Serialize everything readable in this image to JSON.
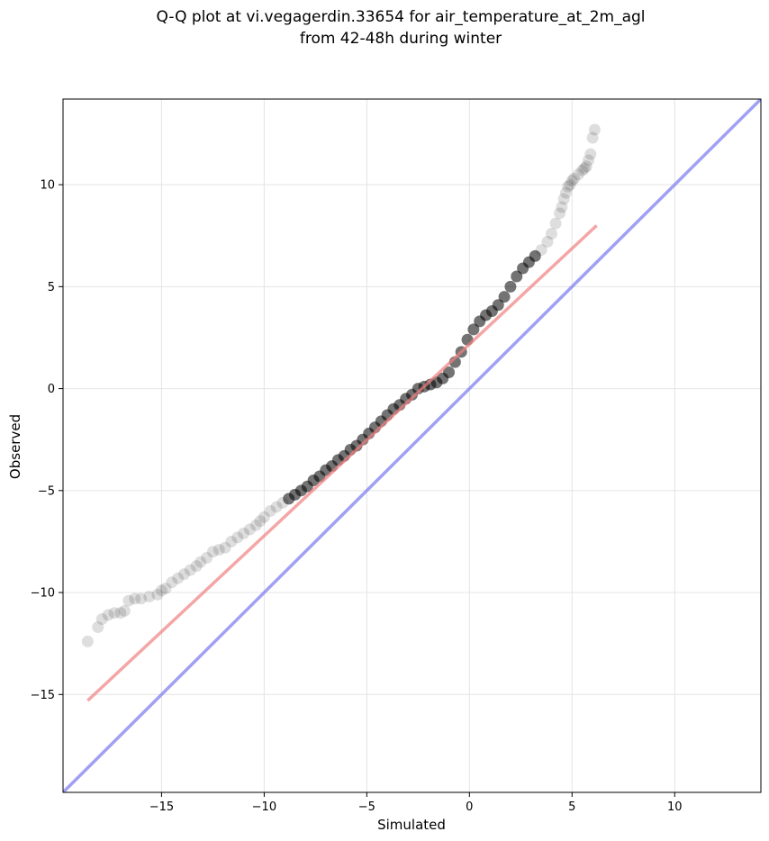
{
  "chart_data": {
    "type": "scatter",
    "title": [
      "Q-Q plot at vi.vegagerdin.33654 for air_temperature_at_2m_agl",
      "from 42-48h during winter"
    ],
    "xlabel": "Simulated",
    "ylabel": "Observed",
    "xlim": [
      -19.8,
      14.2
    ],
    "ylim": [
      -19.8,
      14.2
    ],
    "xticks": [
      -15,
      -10,
      -5,
      0,
      5,
      10
    ],
    "yticks": [
      -15,
      -10,
      -5,
      0,
      5,
      10
    ],
    "xtick_labels": [
      "−15",
      "−10",
      "−5",
      "0",
      "5",
      "10"
    ],
    "ytick_labels": [
      "−15",
      "−10",
      "−5",
      "0",
      "5",
      "10"
    ],
    "grid": true,
    "series": [
      {
        "kind": "points",
        "color": "#000000",
        "x": [
          -18.6,
          -18.1,
          -17.9,
          -17.6,
          -17.3,
          -17.0,
          -16.8,
          -16.6,
          -16.3,
          -16.0,
          -15.6,
          -15.2,
          -15.0,
          -14.8,
          -14.5,
          -14.2,
          -13.9,
          -13.6,
          -13.3,
          -13.1,
          -12.8,
          -12.5,
          -12.2,
          -11.9,
          -11.6,
          -11.3,
          -11.0,
          -10.7,
          -10.4,
          -10.2,
          -10.0,
          -9.7,
          -9.4,
          -9.1,
          -8.8,
          -8.5,
          -8.2,
          -7.9,
          -7.6,
          -7.3,
          -7.0,
          -6.7,
          -6.4,
          -6.1,
          -5.8,
          -5.5,
          -5.2,
          -4.9,
          -4.6,
          -4.3,
          -4.0,
          -3.7,
          -3.4,
          -3.1,
          -2.8,
          -2.5,
          -2.2,
          -1.9,
          -1.6,
          -1.3,
          -1.0,
          -0.7,
          -0.4,
          -0.1,
          0.2,
          0.5,
          0.8,
          1.1,
          1.4,
          1.7,
          2.0,
          2.3,
          2.6,
          2.9,
          3.2,
          3.5,
          3.8,
          4.0,
          4.2,
          4.4,
          4.5,
          4.6,
          4.7,
          4.8,
          4.9,
          5.0,
          5.1,
          5.3,
          5.5,
          5.6,
          5.7,
          5.8,
          5.9,
          6.0,
          6.1
        ],
        "y": [
          -12.4,
          -11.7,
          -11.3,
          -11.1,
          -11.0,
          -11.0,
          -10.9,
          -10.4,
          -10.3,
          -10.3,
          -10.2,
          -10.1,
          -9.9,
          -9.8,
          -9.5,
          -9.3,
          -9.1,
          -8.9,
          -8.7,
          -8.5,
          -8.3,
          -8.0,
          -7.9,
          -7.8,
          -7.5,
          -7.3,
          -7.1,
          -6.9,
          -6.7,
          -6.5,
          -6.3,
          -6.0,
          -5.8,
          -5.6,
          -5.4,
          -5.2,
          -5.0,
          -4.8,
          -4.5,
          -4.3,
          -4.0,
          -3.8,
          -3.5,
          -3.3,
          -3.0,
          -2.8,
          -2.5,
          -2.2,
          -1.9,
          -1.6,
          -1.3,
          -1.0,
          -0.8,
          -0.5,
          -0.3,
          0.0,
          0.1,
          0.2,
          0.3,
          0.5,
          0.8,
          1.3,
          1.8,
          2.4,
          2.9,
          3.3,
          3.6,
          3.8,
          4.1,
          4.5,
          5.0,
          5.5,
          5.9,
          6.2,
          6.5,
          6.8,
          7.2,
          7.6,
          8.1,
          8.6,
          8.9,
          9.3,
          9.6,
          9.9,
          10.0,
          10.2,
          10.3,
          10.5,
          10.7,
          10.8,
          10.9,
          11.2,
          11.5,
          12.3,
          12.7
        ]
      },
      {
        "kind": "fit-line",
        "color": "#f08080",
        "x": [
          -18.6,
          6.2
        ],
        "y": [
          -15.3,
          8.0
        ]
      },
      {
        "kind": "identity-line",
        "color": "#8080f0",
        "x": [
          -19.8,
          14.2
        ],
        "y": [
          -19.8,
          14.2
        ]
      }
    ]
  }
}
